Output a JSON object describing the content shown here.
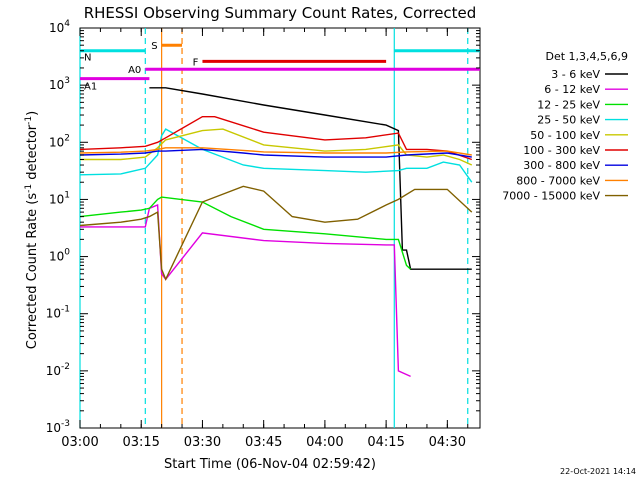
{
  "chart_data": {
    "type": "line",
    "title": "RHESSI Observing Summary Count Rates, Corrected",
    "xlabel": "Start Time (06-Nov-04 02:59:42)",
    "ylabel": "Corrected Count Rate (s⁻¹ detector⁻¹)",
    "x_scale": "time",
    "y_scale": "log",
    "xlim": [
      "03:00",
      "04:38"
    ],
    "ylim": [
      0.001,
      10000
    ],
    "x_ticks": [
      "03:00",
      "03:15",
      "03:30",
      "03:45",
      "04:00",
      "04:15",
      "04:30"
    ],
    "y_ticks": [
      {
        "label_base": "10",
        "label_exp": "-3",
        "value": 0.001
      },
      {
        "label_base": "10",
        "label_exp": "-2",
        "value": 0.01
      },
      {
        "label_base": "10",
        "label_exp": "-1",
        "value": 0.1
      },
      {
        "label_base": "10",
        "label_exp": "0",
        "value": 1
      },
      {
        "label_base": "10",
        "label_exp": "1",
        "value": 10
      },
      {
        "label_base": "10",
        "label_exp": "2",
        "value": 100
      },
      {
        "label_base": "10",
        "label_exp": "3",
        "value": 1000
      },
      {
        "label_base": "10",
        "label_exp": "4",
        "value": 10000
      }
    ],
    "legend_title": "Det 1,3,4,5,6,9",
    "legend_position": "top-right outside",
    "series": [
      {
        "name": "3 - 6 keV",
        "color": "#000000",
        "points": [
          [
            "03:17",
            900
          ],
          [
            "03:21",
            900
          ],
          [
            "03:30",
            700
          ],
          [
            "03:45",
            450
          ],
          [
            "04:00",
            300
          ],
          [
            "04:15",
            200
          ],
          [
            "04:18",
            160
          ],
          [
            "04:19",
            1.3
          ],
          [
            "04:20",
            1.3
          ],
          [
            "04:21",
            0.6
          ],
          [
            "04:36",
            0.6
          ]
        ]
      },
      {
        "name": "6 - 12 keV",
        "color": "#e000e0",
        "points": [
          [
            "03:00",
            3.3
          ],
          [
            "03:10",
            3.3
          ],
          [
            "03:15",
            3.3
          ],
          [
            "03:16",
            3.3
          ],
          [
            "03:17",
            7
          ],
          [
            "03:19",
            8
          ],
          [
            "03:20",
            0.5
          ],
          [
            "03:21",
            0.4
          ],
          [
            "03:30",
            2.6
          ],
          [
            "03:45",
            1.9
          ],
          [
            "04:00",
            1.7
          ],
          [
            "04:15",
            1.6
          ],
          [
            "04:17",
            1.6
          ],
          [
            "04:18",
            0.01
          ],
          [
            "04:21",
            0.008
          ]
        ]
      },
      {
        "name": "12 - 25 keV",
        "color": "#00e000",
        "points": [
          [
            "03:00",
            5
          ],
          [
            "03:10",
            6
          ],
          [
            "03:15",
            6.5
          ],
          [
            "03:17",
            7
          ],
          [
            "03:19",
            10
          ],
          [
            "03:20",
            11
          ],
          [
            "03:30",
            9
          ],
          [
            "03:37",
            5
          ],
          [
            "03:45",
            3
          ],
          [
            "04:00",
            2.5
          ],
          [
            "04:15",
            2
          ],
          [
            "04:18",
            2
          ],
          [
            "04:20",
            0.7
          ],
          [
            "04:21",
            0.6
          ]
        ]
      },
      {
        "name": "25 - 50 keV",
        "color": "#00e0e0",
        "points": [
          [
            "03:00",
            27
          ],
          [
            "03:10",
            28
          ],
          [
            "03:16",
            35
          ],
          [
            "03:19",
            60
          ],
          [
            "03:20",
            130
          ],
          [
            "03:21",
            170
          ],
          [
            "03:30",
            75
          ],
          [
            "03:40",
            40
          ],
          [
            "03:45",
            35
          ],
          [
            "04:00",
            32
          ],
          [
            "04:10",
            30
          ],
          [
            "04:18",
            32
          ],
          [
            "04:20",
            35
          ],
          [
            "04:25",
            35
          ],
          [
            "04:29",
            45
          ],
          [
            "04:33",
            40
          ],
          [
            "04:36",
            20
          ]
        ]
      },
      {
        "name": "50 - 100 keV",
        "color": "#c8c800",
        "points": [
          [
            "03:00",
            50
          ],
          [
            "03:10",
            50
          ],
          [
            "03:16",
            55
          ],
          [
            "03:19",
            80
          ],
          [
            "03:21",
            110
          ],
          [
            "03:30",
            160
          ],
          [
            "03:35",
            170
          ],
          [
            "03:45",
            90
          ],
          [
            "04:00",
            70
          ],
          [
            "04:10",
            75
          ],
          [
            "04:18",
            90
          ],
          [
            "04:20",
            60
          ],
          [
            "04:25",
            55
          ],
          [
            "04:29",
            60
          ],
          [
            "04:33",
            50
          ],
          [
            "04:36",
            40
          ]
        ]
      },
      {
        "name": "100 - 300 keV",
        "color": "#e00000",
        "points": [
          [
            "03:00",
            75
          ],
          [
            "03:10",
            80
          ],
          [
            "03:16",
            85
          ],
          [
            "03:19",
            100
          ],
          [
            "03:21",
            120
          ],
          [
            "03:30",
            280
          ],
          [
            "03:33",
            280
          ],
          [
            "03:45",
            150
          ],
          [
            "04:00",
            110
          ],
          [
            "04:10",
            120
          ],
          [
            "04:18",
            145
          ],
          [
            "04:20",
            75
          ],
          [
            "04:25",
            75
          ],
          [
            "04:30",
            70
          ],
          [
            "04:36",
            50
          ]
        ]
      },
      {
        "name": "300 - 800 keV",
        "color": "#0000e0",
        "points": [
          [
            "03:00",
            60
          ],
          [
            "03:10",
            62
          ],
          [
            "03:16",
            65
          ],
          [
            "03:19",
            70
          ],
          [
            "03:21",
            70
          ],
          [
            "03:30",
            75
          ],
          [
            "03:40",
            65
          ],
          [
            "03:45",
            60
          ],
          [
            "04:00",
            55
          ],
          [
            "04:15",
            55
          ],
          [
            "04:20",
            60
          ],
          [
            "04:30",
            65
          ],
          [
            "04:36",
            55
          ]
        ]
      },
      {
        "name": "800 - 7000 keV",
        "color": "#ff8000",
        "points": [
          [
            "03:00",
            65
          ],
          [
            "03:10",
            67
          ],
          [
            "03:16",
            70
          ],
          [
            "03:19",
            75
          ],
          [
            "03:21",
            80
          ],
          [
            "03:30",
            80
          ],
          [
            "03:40",
            72
          ],
          [
            "03:45",
            68
          ],
          [
            "04:00",
            65
          ],
          [
            "04:15",
            65
          ],
          [
            "04:20",
            68
          ],
          [
            "04:30",
            70
          ],
          [
            "04:36",
            60
          ]
        ]
      },
      {
        "name": "7000 - 15000 keV",
        "color": "#806000",
        "points": [
          [
            "03:00",
            3.5
          ],
          [
            "03:10",
            4
          ],
          [
            "03:15",
            4.5
          ],
          [
            "03:17",
            5
          ],
          [
            "03:19",
            6
          ],
          [
            "03:20",
            0.6
          ],
          [
            "03:21",
            0.4
          ],
          [
            "03:30",
            9
          ],
          [
            "03:40",
            17
          ],
          [
            "03:45",
            14
          ],
          [
            "03:52",
            5
          ],
          [
            "04:00",
            4
          ],
          [
            "04:08",
            4.5
          ],
          [
            "04:15",
            8
          ],
          [
            "04:18",
            10
          ],
          [
            "04:22",
            15
          ],
          [
            "04:30",
            15
          ],
          [
            "04:36",
            6
          ]
        ]
      }
    ],
    "vertical_markers": [
      {
        "x": "03:00",
        "color": "#00e0e0",
        "style": "solid"
      },
      {
        "x": "03:16",
        "color": "#00e0e0",
        "style": "dashed"
      },
      {
        "x": "03:20",
        "color": "#ff8000",
        "style": "solid"
      },
      {
        "x": "03:25",
        "color": "#ff8000",
        "style": "dashed"
      },
      {
        "x": "04:17",
        "color": "#00e0e0",
        "style": "solid"
      },
      {
        "x": "04:35",
        "color": "#00e0e0",
        "style": "dashed"
      }
    ],
    "attenuator_bars": [
      {
        "label": "S",
        "color": "#ff8000",
        "x0": "03:20",
        "x1": "03:25",
        "y": 5000,
        "label_side": "left"
      },
      {
        "label": "N",
        "color": "#00e0e0",
        "x0": "03:00",
        "x1": "03:16",
        "y": 4000,
        "label_side": "right",
        "label_dy": 6
      },
      {
        "label": "N",
        "color": "#00e0e0",
        "x0": "04:17",
        "x1": "04:38",
        "y": 4000,
        "label_side": "none"
      },
      {
        "label": "F",
        "color": "#e00000",
        "x0": "03:30",
        "x1": "04:15",
        "y": 2600,
        "label_side": "left"
      },
      {
        "label": "A0",
        "color": "#e000e0",
        "x0": "03:16",
        "x1": "04:38",
        "y": 1900,
        "label_side": "left"
      },
      {
        "label": "A1",
        "color": "#e000e0",
        "x0": "03:00",
        "x1": "03:17",
        "y": 1300,
        "label_side": "right",
        "label_dy": 7
      }
    ],
    "grid": false
  },
  "footer": {
    "timestamp": "22-Oct-2021 14:14"
  }
}
